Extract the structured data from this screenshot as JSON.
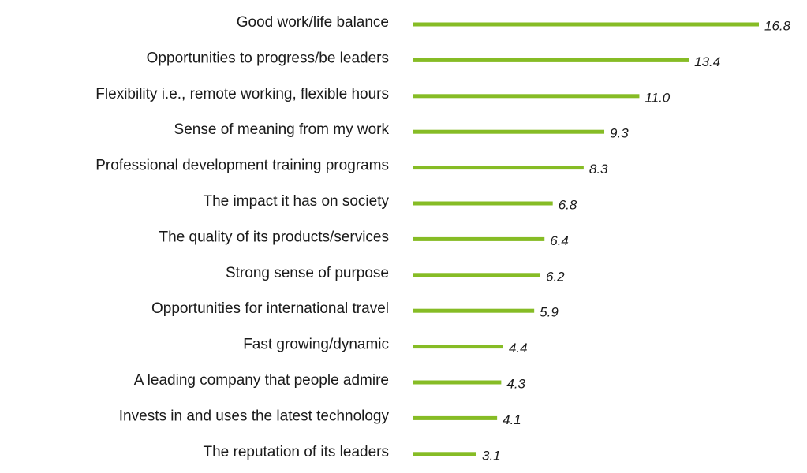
{
  "colors": {
    "bar": "#86bc25",
    "text": "#1a1a1a"
  },
  "chart_data": {
    "type": "bar",
    "orientation": "horizontal",
    "title": "",
    "xlabel": "",
    "ylabel": "",
    "grid": false,
    "xlim": [
      0,
      16.8
    ],
    "categories": [
      "Good work/life balance",
      "Opportunities to progress/be leaders",
      "Flexibility i.e., remote working, flexible hours",
      "Sense of meaning from my work",
      "Professional development training programs",
      "The impact it has on society",
      "The quality of its products/services",
      "Strong sense of purpose",
      "Opportunities for international travel",
      "Fast growing/dynamic",
      "A leading company that people admire",
      "Invests in and uses the latest technology",
      "The reputation of its leaders"
    ],
    "values": [
      16.8,
      13.4,
      11.0,
      9.3,
      8.3,
      6.8,
      6.4,
      6.2,
      5.9,
      4.4,
      4.3,
      4.1,
      3.1
    ],
    "value_labels": [
      "16.8",
      "13.4",
      "11.0",
      "9.3",
      "8.3",
      "6.8",
      "6.4",
      "6.2",
      "5.9",
      "4.4",
      "4.3",
      "4.1",
      "3.1"
    ]
  }
}
